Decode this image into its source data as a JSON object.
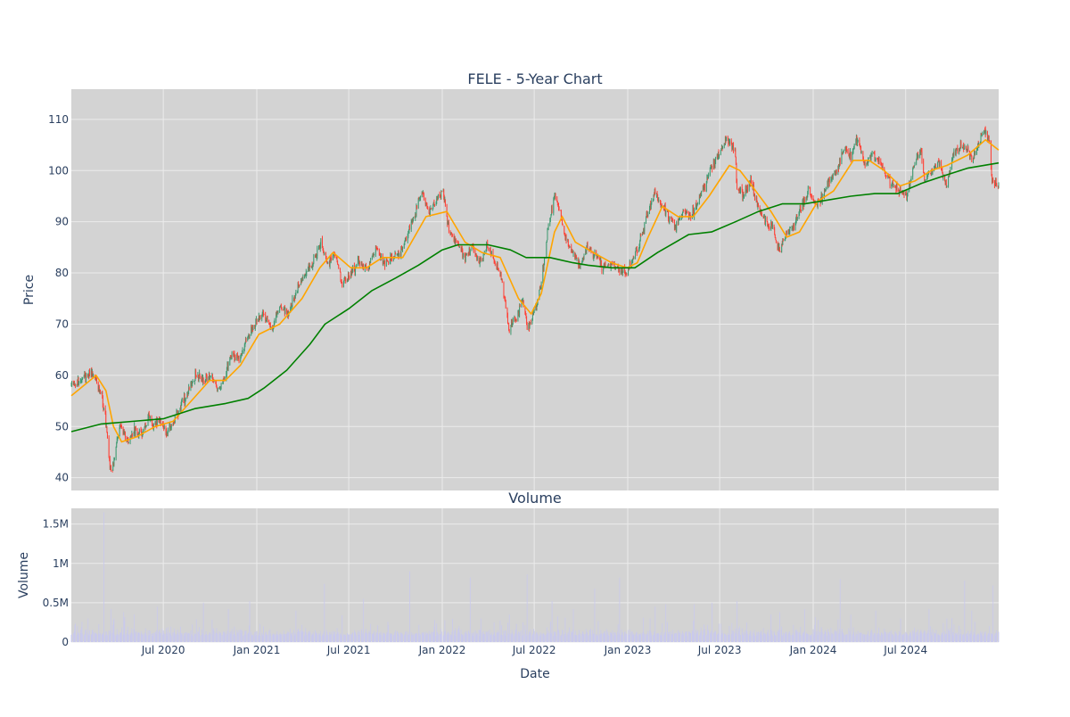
{
  "chart_data": [
    {
      "type": "candlestick",
      "title": "FELE - 5-Year Chart",
      "ylabel": "Price",
      "ylim": [
        37.5,
        115.9
      ],
      "yticks": [
        40,
        50,
        60,
        70,
        80,
        90,
        100,
        110
      ],
      "grid": true,
      "series": [
        {
          "kind": "ohlc",
          "color_up": "#3d9970",
          "color_down": "#ff4136"
        },
        {
          "kind": "line",
          "color": "#ffa500"
        },
        {
          "kind": "line",
          "color": "#008000"
        }
      ],
      "price_path": [
        [
          "2020-01-02",
          58
        ],
        [
          "2020-01-20",
          59
        ],
        [
          "2020-02-10",
          60.5
        ],
        [
          "2020-02-21",
          59
        ],
        [
          "2020-03-02",
          56
        ],
        [
          "2020-03-10",
          51
        ],
        [
          "2020-03-18",
          42
        ],
        [
          "2020-03-23",
          41.5
        ],
        [
          "2020-03-31",
          47
        ],
        [
          "2020-04-08",
          51
        ],
        [
          "2020-04-22",
          47
        ],
        [
          "2020-05-06",
          49
        ],
        [
          "2020-05-20",
          48
        ],
        [
          "2020-06-03",
          52
        ],
        [
          "2020-06-12",
          50
        ],
        [
          "2020-06-24",
          51
        ],
        [
          "2020-07-08",
          49
        ],
        [
          "2020-07-22",
          51
        ],
        [
          "2020-08-05",
          54
        ],
        [
          "2020-08-20",
          57
        ],
        [
          "2020-09-03",
          60
        ],
        [
          "2020-09-18",
          59
        ],
        [
          "2020-10-02",
          60
        ],
        [
          "2020-10-16",
          57
        ],
        [
          "2020-10-30",
          60
        ],
        [
          "2020-11-13",
          64
        ],
        [
          "2020-11-27",
          63
        ],
        [
          "2020-12-11",
          67
        ],
        [
          "2020-12-28",
          70
        ],
        [
          "2021-01-15",
          72
        ],
        [
          "2021-02-01",
          69
        ],
        [
          "2021-02-17",
          74
        ],
        [
          "2021-03-05",
          72
        ],
        [
          "2021-03-22",
          77
        ],
        [
          "2021-04-08",
          80
        ],
        [
          "2021-04-26",
          83
        ],
        [
          "2021-05-07",
          86
        ],
        [
          "2021-05-21",
          82
        ],
        [
          "2021-06-04",
          84
        ],
        [
          "2021-06-18",
          78
        ],
        [
          "2021-07-06",
          80
        ],
        [
          "2021-07-20",
          82
        ],
        [
          "2021-08-09",
          81
        ],
        [
          "2021-08-24",
          85
        ],
        [
          "2021-09-08",
          82
        ],
        [
          "2021-09-24",
          83
        ],
        [
          "2021-10-11",
          84
        ],
        [
          "2021-10-26",
          88
        ],
        [
          "2021-11-10",
          92
        ],
        [
          "2021-11-22",
          96
        ],
        [
          "2021-12-06",
          92
        ],
        [
          "2021-12-20",
          94
        ],
        [
          "2022-01-03",
          96
        ],
        [
          "2022-01-14",
          88
        ],
        [
          "2022-01-28",
          86
        ],
        [
          "2022-02-14",
          83
        ],
        [
          "2022-03-01",
          85
        ],
        [
          "2022-03-15",
          82
        ],
        [
          "2022-03-30",
          85
        ],
        [
          "2022-04-13",
          83
        ],
        [
          "2022-04-27",
          79
        ],
        [
          "2022-05-06",
          73
        ],
        [
          "2022-05-12",
          69
        ],
        [
          "2022-05-26",
          71
        ],
        [
          "2022-06-08",
          75
        ],
        [
          "2022-06-17",
          69
        ],
        [
          "2022-06-30",
          72
        ],
        [
          "2022-07-15",
          78
        ],
        [
          "2022-07-29",
          89
        ],
        [
          "2022-08-10",
          95
        ],
        [
          "2022-08-18",
          93
        ],
        [
          "2022-08-31",
          87
        ],
        [
          "2022-09-14",
          84
        ],
        [
          "2022-09-30",
          81
        ],
        [
          "2022-10-14",
          85
        ],
        [
          "2022-10-31",
          83
        ],
        [
          "2022-11-15",
          81
        ],
        [
          "2022-11-30",
          82
        ],
        [
          "2022-12-15",
          80
        ],
        [
          "2022-12-30",
          80
        ],
        [
          "2023-01-13",
          83
        ],
        [
          "2023-01-27",
          87
        ],
        [
          "2023-02-10",
          92
        ],
        [
          "2023-02-24",
          96
        ],
        [
          "2023-03-10",
          93
        ],
        [
          "2023-03-24",
          91
        ],
        [
          "2023-04-06",
          89
        ],
        [
          "2023-04-21",
          92
        ],
        [
          "2023-05-05",
          91
        ],
        [
          "2023-05-19",
          94
        ],
        [
          "2023-06-02",
          97
        ],
        [
          "2023-06-16",
          101
        ],
        [
          "2023-06-30",
          103
        ],
        [
          "2023-07-14",
          106
        ],
        [
          "2023-07-31",
          104
        ],
        [
          "2023-08-04",
          97
        ],
        [
          "2023-08-18",
          95
        ],
        [
          "2023-09-01",
          98
        ],
        [
          "2023-09-15",
          93
        ],
        [
          "2023-09-29",
          90
        ],
        [
          "2023-10-13",
          89
        ],
        [
          "2023-10-27",
          84
        ],
        [
          "2023-11-10",
          88
        ],
        [
          "2023-11-24",
          89
        ],
        [
          "2023-12-08",
          93
        ],
        [
          "2023-12-22",
          96
        ],
        [
          "2024-01-05",
          94
        ],
        [
          "2024-01-19",
          95
        ],
        [
          "2024-02-02",
          98
        ],
        [
          "2024-02-16",
          100
        ],
        [
          "2024-03-01",
          104
        ],
        [
          "2024-03-15",
          103
        ],
        [
          "2024-03-28",
          106
        ],
        [
          "2024-04-12",
          101
        ],
        [
          "2024-04-26",
          103
        ],
        [
          "2024-05-10",
          102
        ],
        [
          "2024-05-24",
          99
        ],
        [
          "2024-06-07",
          97
        ],
        [
          "2024-06-21",
          96
        ],
        [
          "2024-07-03",
          95
        ],
        [
          "2024-07-17",
          101
        ],
        [
          "2024-07-31",
          104
        ],
        [
          "2024-08-07",
          98
        ],
        [
          "2024-08-21",
          100
        ],
        [
          "2024-09-05",
          102
        ],
        [
          "2024-09-19",
          97
        ],
        [
          "2024-10-03",
          103
        ],
        [
          "2024-10-17",
          105
        ],
        [
          "2024-10-31",
          104
        ],
        [
          "2024-11-08",
          102
        ],
        [
          "2024-11-20",
          105
        ],
        [
          "2024-12-02",
          108
        ],
        [
          "2024-12-12",
          106
        ],
        [
          "2024-12-18",
          98
        ],
        [
          "2024-12-31",
          97
        ]
      ],
      "ma_fast": [
        [
          "2020-01-02",
          56
        ],
        [
          "2020-02-20",
          60
        ],
        [
          "2020-03-10",
          57
        ],
        [
          "2020-03-25",
          50
        ],
        [
          "2020-04-10",
          47
        ],
        [
          "2020-05-10",
          48
        ],
        [
          "2020-06-15",
          50
        ],
        [
          "2020-07-20",
          51
        ],
        [
          "2020-08-25",
          55
        ],
        [
          "2020-09-30",
          59
        ],
        [
          "2020-10-31",
          59
        ],
        [
          "2020-11-30",
          62
        ],
        [
          "2021-01-05",
          68
        ],
        [
          "2021-02-15",
          70
        ],
        [
          "2021-03-31",
          75
        ],
        [
          "2021-05-05",
          81
        ],
        [
          "2021-05-31",
          84
        ],
        [
          "2021-07-05",
          81
        ],
        [
          "2021-08-05",
          81
        ],
        [
          "2021-09-05",
          83
        ],
        [
          "2021-10-15",
          83
        ],
        [
          "2021-11-30",
          91
        ],
        [
          "2022-01-10",
          92
        ],
        [
          "2022-02-15",
          86
        ],
        [
          "2022-03-20",
          84
        ],
        [
          "2022-04-25",
          83
        ],
        [
          "2022-05-31",
          75
        ],
        [
          "2022-06-25",
          72
        ],
        [
          "2022-07-15",
          76
        ],
        [
          "2022-08-10",
          88
        ],
        [
          "2022-08-25",
          91
        ],
        [
          "2022-09-20",
          86
        ],
        [
          "2022-10-25",
          84
        ],
        [
          "2022-11-30",
          82
        ],
        [
          "2022-12-31",
          81
        ],
        [
          "2023-01-20",
          82
        ],
        [
          "2023-02-10",
          87
        ],
        [
          "2023-03-10",
          93
        ],
        [
          "2023-04-10",
          91
        ],
        [
          "2023-05-10",
          91
        ],
        [
          "2023-06-10",
          95
        ],
        [
          "2023-07-20",
          101
        ],
        [
          "2023-08-10",
          100
        ],
        [
          "2023-09-10",
          96
        ],
        [
          "2023-10-10",
          92
        ],
        [
          "2023-11-10",
          87
        ],
        [
          "2023-12-05",
          88
        ],
        [
          "2024-01-10",
          94
        ],
        [
          "2024-02-10",
          96
        ],
        [
          "2024-03-20",
          102
        ],
        [
          "2024-04-20",
          102
        ],
        [
          "2024-05-20",
          100
        ],
        [
          "2024-06-20",
          97
        ],
        [
          "2024-07-20",
          98
        ],
        [
          "2024-08-20",
          100
        ],
        [
          "2024-09-20",
          101
        ],
        [
          "2024-10-31",
          103
        ],
        [
          "2024-12-05",
          106
        ],
        [
          "2024-12-31",
          104
        ]
      ],
      "ma_slow": [
        [
          "2020-01-02",
          49
        ],
        [
          "2020-03-01",
          50.5
        ],
        [
          "2020-05-01",
          51
        ],
        [
          "2020-07-01",
          51.5
        ],
        [
          "2020-09-01",
          53.5
        ],
        [
          "2020-11-01",
          54.5
        ],
        [
          "2020-12-15",
          55.5
        ],
        [
          "2021-01-15",
          57.5
        ],
        [
          "2021-03-01",
          61
        ],
        [
          "2021-04-15",
          66
        ],
        [
          "2021-05-15",
          70
        ],
        [
          "2021-07-01",
          73
        ],
        [
          "2021-08-15",
          76.5
        ],
        [
          "2021-10-01",
          79
        ],
        [
          "2021-11-15",
          81.5
        ],
        [
          "2022-01-01",
          84.5
        ],
        [
          "2022-02-01",
          85.5
        ],
        [
          "2022-04-01",
          85.5
        ],
        [
          "2022-05-15",
          84.5
        ],
        [
          "2022-06-15",
          83
        ],
        [
          "2022-08-01",
          83
        ],
        [
          "2022-09-15",
          82
        ],
        [
          "2022-10-15",
          81.5
        ],
        [
          "2022-12-01",
          81
        ],
        [
          "2023-01-15",
          81
        ],
        [
          "2023-03-01",
          84
        ],
        [
          "2023-05-01",
          87.5
        ],
        [
          "2023-06-15",
          88
        ],
        [
          "2023-08-01",
          90
        ],
        [
          "2023-09-15",
          92
        ],
        [
          "2023-11-01",
          93.5
        ],
        [
          "2023-12-15",
          93.5
        ],
        [
          "2024-01-15",
          94
        ],
        [
          "2024-03-15",
          95
        ],
        [
          "2024-05-01",
          95.5
        ],
        [
          "2024-06-15",
          95.5
        ],
        [
          "2024-08-01",
          97.5
        ],
        [
          "2024-09-15",
          99
        ],
        [
          "2024-11-01",
          100.5
        ],
        [
          "2024-12-31",
          101.5
        ]
      ]
    },
    {
      "type": "bar",
      "title": "Volume",
      "xlabel": "Date",
      "ylabel": "Volume",
      "ylim": [
        0,
        1.7
      ],
      "yticks": [
        0,
        0.5,
        1,
        1.5
      ],
      "ytick_labels": [
        "0",
        "0.5M",
        "1M",
        "1.5M"
      ],
      "color": "#c9c9ec",
      "spikes": [
        [
          "2020-03-06",
          1.65
        ],
        [
          "2020-02-04",
          0.3
        ],
        [
          "2020-03-20",
          0.42
        ],
        [
          "2020-04-14",
          0.38
        ],
        [
          "2020-05-05",
          0.35
        ],
        [
          "2020-06-19",
          0.45
        ],
        [
          "2020-09-18",
          0.5
        ],
        [
          "2020-11-06",
          0.42
        ],
        [
          "2020-12-18",
          0.52
        ],
        [
          "2021-03-19",
          0.4
        ],
        [
          "2021-05-14",
          0.74
        ],
        [
          "2021-06-18",
          0.34
        ],
        [
          "2021-07-30",
          0.55
        ],
        [
          "2021-10-29",
          0.9
        ],
        [
          "2021-12-17",
          0.28
        ],
        [
          "2022-02-25",
          0.82
        ],
        [
          "2022-03-18",
          0.3
        ],
        [
          "2022-05-13",
          0.35
        ],
        [
          "2022-06-17",
          0.86
        ],
        [
          "2022-08-05",
          0.52
        ],
        [
          "2022-09-16",
          0.42
        ],
        [
          "2022-10-28",
          0.68
        ],
        [
          "2022-12-16",
          0.82
        ],
        [
          "2023-02-24",
          0.45
        ],
        [
          "2023-03-17",
          0.48
        ],
        [
          "2023-05-12",
          0.48
        ],
        [
          "2023-06-16",
          0.5
        ],
        [
          "2023-08-04",
          0.52
        ],
        [
          "2023-10-27",
          0.38
        ],
        [
          "2023-12-15",
          0.42
        ],
        [
          "2024-02-23",
          0.8
        ],
        [
          "2024-03-15",
          0.35
        ],
        [
          "2024-05-03",
          0.4
        ],
        [
          "2024-06-21",
          0.3
        ],
        [
          "2024-08-16",
          0.42
        ],
        [
          "2024-09-20",
          0.3
        ],
        [
          "2024-10-25",
          0.78
        ],
        [
          "2024-11-08",
          0.4
        ],
        [
          "2024-12-20",
          0.72
        ]
      ]
    }
  ],
  "x_axis": {
    "ticks": [
      {
        "date": "2020-07-01",
        "label": "Jul 2020"
      },
      {
        "date": "2021-01-01",
        "label": "Jan 2021"
      },
      {
        "date": "2021-07-01",
        "label": "Jul 2021"
      },
      {
        "date": "2022-01-01",
        "label": "Jan 2022"
      },
      {
        "date": "2022-07-01",
        "label": "Jul 2022"
      },
      {
        "date": "2023-01-01",
        "label": "Jan 2023"
      },
      {
        "date": "2023-07-01",
        "label": "Jul 2023"
      },
      {
        "date": "2024-01-01",
        "label": "Jan 2024"
      },
      {
        "date": "2024-07-01",
        "label": "Jul 2024"
      }
    ],
    "range": [
      "2020-01-02",
      "2024-12-31"
    ]
  },
  "colors": {
    "plot_bg": "#d3d3d3",
    "grid": "#ebebeb",
    "text": "#2a3f5f"
  }
}
